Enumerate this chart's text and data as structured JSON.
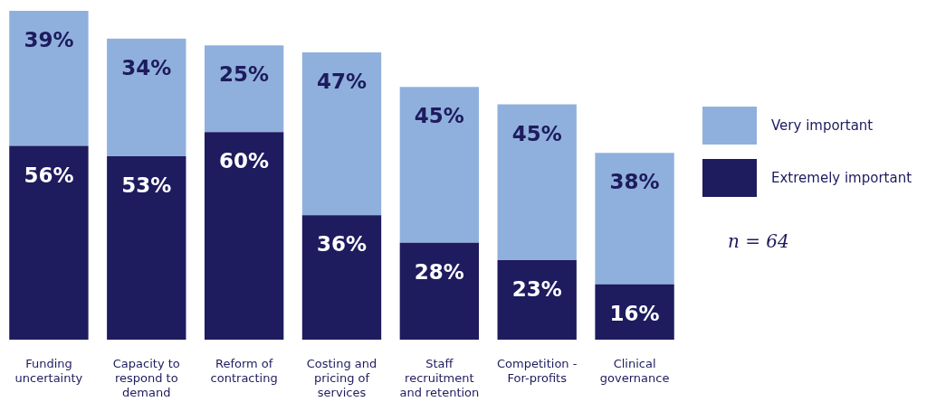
{
  "chart_data": {
    "type": "bar",
    "stacked": true,
    "legend": "right",
    "grid": false,
    "tick_labels": "x",
    "categories": [
      "Funding uncertainty",
      "Capacity to respond to demand",
      "Reform of contracting",
      "Costing and pricing of services",
      "Staff recruitment and retention",
      "Competition - For-profits",
      "Clinical governance"
    ],
    "series": [
      {
        "name": "Extremely important",
        "color": "#1e1b5e",
        "values": [
          56,
          53,
          60,
          36,
          28,
          23,
          16
        ],
        "value_labels": [
          "56%",
          "53%",
          "60%",
          "36%",
          "28%",
          "23%",
          "16%"
        ]
      },
      {
        "name": "Very important",
        "color": "#8fb0dc",
        "values": [
          39,
          34,
          25,
          47,
          45,
          45,
          38
        ],
        "value_labels": [
          "39%",
          "34%",
          "25%",
          "47%",
          "45%",
          "45%",
          "38%"
        ]
      }
    ],
    "annotations": [
      "n = 64"
    ]
  }
}
